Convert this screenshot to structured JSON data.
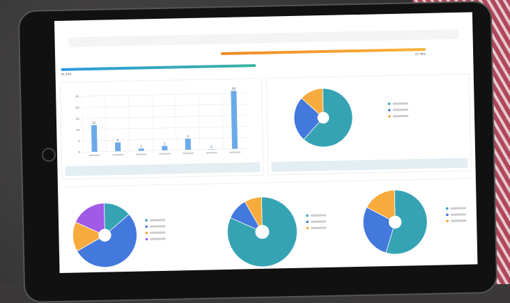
{
  "colors": {
    "teal": "#36a3b5",
    "blue": "#4378dc",
    "orange": "#f7ab3d",
    "purple": "#a05ae6",
    "bar": "#6aaae8"
  },
  "progress": {
    "left_pct": "41.24%",
    "right_pct": "57.76%",
    "fill_fraction": 0.41
  },
  "chart_data": [
    {
      "type": "bar",
      "values": [
        12,
        4,
        1,
        2,
        5,
        0,
        26
      ],
      "data_labels": [
        "12",
        "4",
        "1",
        "2",
        "5",
        "0",
        "26"
      ],
      "ylim": [
        0,
        25
      ],
      "yticks": [
        "0",
        "5",
        "10",
        "15",
        "20",
        "25"
      ],
      "grid": true
    },
    {
      "type": "pie",
      "donut": true,
      "values": [
        62,
        25,
        13
      ],
      "colors": [
        "#36a3b5",
        "#4378dc",
        "#f7ab3d"
      ]
    },
    {
      "type": "pie",
      "donut": true,
      "values": [
        14,
        53,
        15,
        18
      ],
      "colors": [
        "#36a3b5",
        "#4378dc",
        "#f7ab3d",
        "#a05ae6"
      ]
    },
    {
      "type": "pie",
      "donut": true,
      "values": [
        82,
        10,
        8
      ],
      "colors": [
        "#36a3b5",
        "#4378dc",
        "#f7ab3d"
      ]
    },
    {
      "type": "pie",
      "donut": true,
      "values": [
        55,
        28,
        17
      ],
      "colors": [
        "#36a3b5",
        "#4378dc",
        "#f7ab3d"
      ]
    }
  ]
}
